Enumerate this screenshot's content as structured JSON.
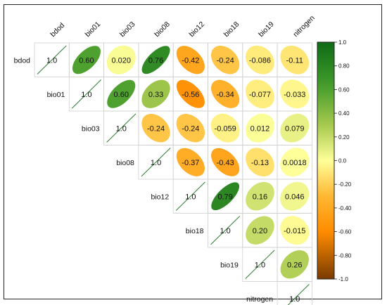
{
  "chart_data": {
    "type": "heatmap",
    "variables": [
      "bdod",
      "bio01",
      "bio03",
      "bio08",
      "bio12",
      "bio18",
      "bio19",
      "nitrogen"
    ],
    "matrix": [
      [
        1.0,
        0.6,
        0.02,
        0.76,
        -0.42,
        -0.24,
        -0.086,
        -0.11
      ],
      [
        null,
        1.0,
        0.6,
        0.33,
        -0.56,
        -0.34,
        -0.077,
        -0.033
      ],
      [
        null,
        null,
        1.0,
        -0.24,
        -0.24,
        -0.059,
        0.012,
        0.079
      ],
      [
        null,
        null,
        null,
        1.0,
        -0.37,
        -0.43,
        -0.13,
        0.0018
      ],
      [
        null,
        null,
        null,
        null,
        1.0,
        0.79,
        0.16,
        0.046
      ],
      [
        null,
        null,
        null,
        null,
        null,
        1.0,
        0.2,
        -0.015
      ],
      [
        null,
        null,
        null,
        null,
        null,
        null,
        1.0,
        0.26
      ],
      [
        null,
        null,
        null,
        null,
        null,
        null,
        null,
        1.0
      ]
    ],
    "labels": [
      [
        "1.0",
        "0.60",
        "0.020",
        "0.76",
        "-0.42",
        "-0.24",
        "-0.086",
        "-0.11"
      ],
      [
        null,
        "1.0",
        "0.60",
        "0.33",
        "-0.56",
        "-0.34",
        "-0.077",
        "-0.033"
      ],
      [
        null,
        null,
        "1.0",
        "-0.24",
        "-0.24",
        "-0.059",
        "0.012",
        "0.079"
      ],
      [
        null,
        null,
        null,
        "1.0",
        "-0.37",
        "-0.43",
        "-0.13",
        "0.0018"
      ],
      [
        null,
        null,
        null,
        null,
        "1.0",
        "0.79",
        "0.16",
        "0.046"
      ],
      [
        null,
        null,
        null,
        null,
        null,
        "1.0",
        "0.20",
        "-0.015"
      ],
      [
        null,
        null,
        null,
        null,
        null,
        null,
        "1.0",
        "0.26"
      ],
      [
        null,
        null,
        null,
        null,
        null,
        null,
        null,
        "1.0"
      ]
    ],
    "colorbar": {
      "ticks": [
        "1.0",
        "0.80",
        "0.60",
        "0.40",
        "0.20",
        "0.0",
        "-0.20",
        "-0.40",
        "-0.60",
        "-0.80",
        "-1.0"
      ],
      "range": [
        -1,
        1
      ],
      "colors": {
        "max": "#0f6b16",
        "high": "#3f9a2a",
        "mid_high": "#a6c94e",
        "zero": "#ffff99",
        "mid_low": "#ffb733",
        "low": "#ff8c00",
        "min": "#7a3a00"
      }
    },
    "grid": true,
    "legend_position": "right"
  }
}
